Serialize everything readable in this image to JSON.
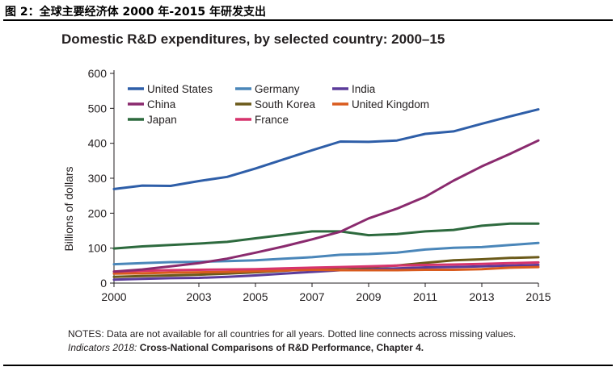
{
  "figure_label": "图 2：全球主要经济体 2000 年-2015 年研发支出",
  "chart_data": {
    "type": "line",
    "title": "Domestic R&D expenditures, by selected country: 2000–15",
    "xlabel": "",
    "ylabel": "Billions of dollars",
    "x": [
      2000,
      2001,
      2002,
      2003,
      2004,
      2005,
      2006,
      2007,
      2008,
      2009,
      2010,
      2011,
      2012,
      2013,
      2014,
      2015
    ],
    "xticks": [
      2000,
      2003,
      2005,
      2007,
      2009,
      2011,
      2013,
      2015
    ],
    "xtick_labels": [
      "2000",
      "2003",
      "2005",
      "2007",
      "2009",
      "2011",
      "2013",
      "2015"
    ],
    "xlim": [
      2000,
      2015
    ],
    "ylim": [
      0,
      600
    ],
    "yticks": [
      0,
      100,
      200,
      300,
      400,
      500,
      600
    ],
    "ytick_labels": [
      "0",
      "100",
      "200",
      "300",
      "400",
      "500",
      "600"
    ],
    "grid": false,
    "legend_position": "top-left",
    "series": [
      {
        "name": "United States",
        "color": "#2e5ea8",
        "values": [
          269,
          279,
          278,
          292,
          304,
          328,
          354,
          380,
          405,
          404,
          408,
          427,
          434,
          456,
          477,
          497
        ]
      },
      {
        "name": "Germany",
        "color": "#4a86b9",
        "values": [
          54,
          57,
          60,
          61,
          63,
          65,
          70,
          74,
          81,
          83,
          87,
          96,
          101,
          103,
          109,
          115
        ]
      },
      {
        "name": "India",
        "color": "#5b3b9a",
        "values": [
          10,
          12,
          14,
          15,
          18,
          22,
          27,
          32,
          37,
          40,
          42,
          45,
          46,
          48,
          50,
          52
        ]
      },
      {
        "name": "China",
        "color": "#8a2a6e",
        "values": [
          33,
          39,
          48,
          57,
          70,
          87,
          105,
          125,
          147,
          185,
          213,
          247,
          293,
          334,
          370,
          408
        ]
      },
      {
        "name": "South Korea",
        "color": "#6b5a1a",
        "values": [
          18,
          20,
          22,
          24,
          27,
          31,
          35,
          41,
          44,
          46,
          50,
          58,
          65,
          68,
          72,
          74
        ]
      },
      {
        "name": "United Kingdom",
        "color": "#d95b1e",
        "values": [
          27,
          28,
          30,
          31,
          32,
          34,
          36,
          38,
          37,
          37,
          37,
          38,
          38,
          40,
          44,
          46
        ]
      },
      {
        "name": "Japan",
        "color": "#2d6a3e",
        "values": [
          99,
          105,
          109,
          113,
          118,
          128,
          138,
          148,
          148,
          137,
          140,
          148,
          152,
          164,
          170,
          170
        ]
      },
      {
        "name": "France",
        "color": "#d6336c",
        "values": [
          33,
          35,
          37,
          38,
          39,
          40,
          42,
          44,
          46,
          48,
          50,
          52,
          53,
          55,
          57,
          59
        ]
      }
    ]
  },
  "notes": {
    "line1": "NOTES: Data are not available for all countries for all years. Dotted line connects across missing values.",
    "source_italic": "Indicators 2018: ",
    "source_bold": "Cross-National Comparisons of R&D Performance, Chapter 4."
  }
}
